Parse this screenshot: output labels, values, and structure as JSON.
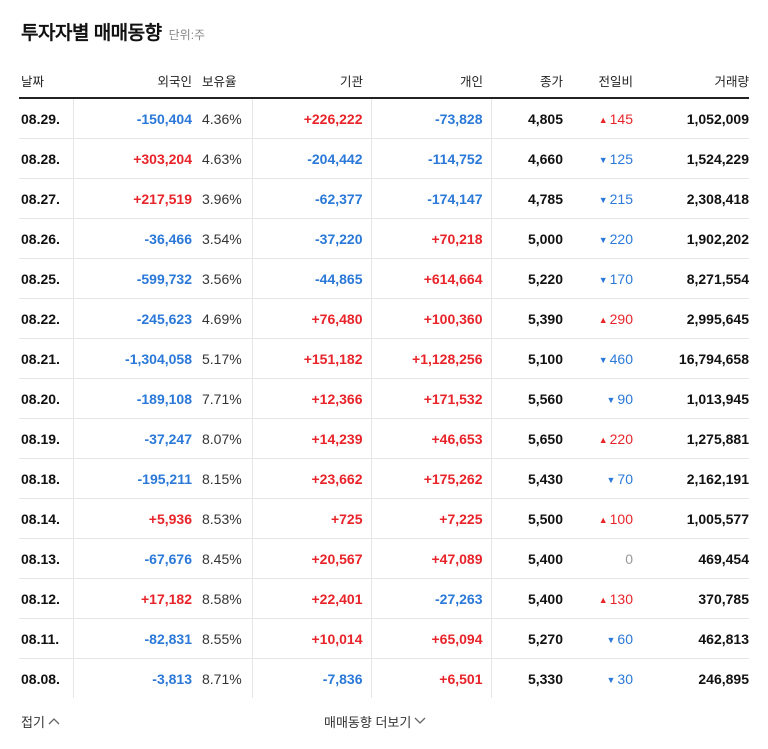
{
  "header": {
    "title": "투자자별 매매동향",
    "unit": "단위:주"
  },
  "columns": [
    "날짜",
    "외국인",
    "보유율",
    "기관",
    "개인",
    "종가",
    "전일비",
    "거래량"
  ],
  "rows": [
    {
      "date": "08.29.",
      "foreign": "-150,404",
      "holding": "4.36%",
      "institution": "+226,222",
      "individual": "-73,828",
      "close": "4,805",
      "dir": "up",
      "change": "145",
      "volume": "1,052,009"
    },
    {
      "date": "08.28.",
      "foreign": "+303,204",
      "holding": "4.63%",
      "institution": "-204,442",
      "individual": "-114,752",
      "close": "4,660",
      "dir": "down",
      "change": "125",
      "volume": "1,524,229"
    },
    {
      "date": "08.27.",
      "foreign": "+217,519",
      "holding": "3.96%",
      "institution": "-62,377",
      "individual": "-174,147",
      "close": "4,785",
      "dir": "down",
      "change": "215",
      "volume": "2,308,418"
    },
    {
      "date": "08.26.",
      "foreign": "-36,466",
      "holding": "3.54%",
      "institution": "-37,220",
      "individual": "+70,218",
      "close": "5,000",
      "dir": "down",
      "change": "220",
      "volume": "1,902,202"
    },
    {
      "date": "08.25.",
      "foreign": "-599,732",
      "holding": "3.56%",
      "institution": "-44,865",
      "individual": "+614,664",
      "close": "5,220",
      "dir": "down",
      "change": "170",
      "volume": "8,271,554"
    },
    {
      "date": "08.22.",
      "foreign": "-245,623",
      "holding": "4.69%",
      "institution": "+76,480",
      "individual": "+100,360",
      "close": "5,390",
      "dir": "up",
      "change": "290",
      "volume": "2,995,645"
    },
    {
      "date": "08.21.",
      "foreign": "-1,304,058",
      "holding": "5.17%",
      "institution": "+151,182",
      "individual": "+1,128,256",
      "close": "5,100",
      "dir": "down",
      "change": "460",
      "volume": "16,794,658"
    },
    {
      "date": "08.20.",
      "foreign": "-189,108",
      "holding": "7.71%",
      "institution": "+12,366",
      "individual": "+171,532",
      "close": "5,560",
      "dir": "down",
      "change": "90",
      "volume": "1,013,945"
    },
    {
      "date": "08.19.",
      "foreign": "-37,247",
      "holding": "8.07%",
      "institution": "+14,239",
      "individual": "+46,653",
      "close": "5,650",
      "dir": "up",
      "change": "220",
      "volume": "1,275,881"
    },
    {
      "date": "08.18.",
      "foreign": "-195,211",
      "holding": "8.15%",
      "institution": "+23,662",
      "individual": "+175,262",
      "close": "5,430",
      "dir": "down",
      "change": "70",
      "volume": "2,162,191"
    },
    {
      "date": "08.14.",
      "foreign": "+5,936",
      "holding": "8.53%",
      "institution": "+725",
      "individual": "+7,225",
      "close": "5,500",
      "dir": "up",
      "change": "100",
      "volume": "1,005,577"
    },
    {
      "date": "08.13.",
      "foreign": "-67,676",
      "holding": "8.45%",
      "institution": "+20,567",
      "individual": "+47,089",
      "close": "5,400",
      "dir": "flat",
      "change": "0",
      "volume": "469,454"
    },
    {
      "date": "08.12.",
      "foreign": "+17,182",
      "holding": "8.58%",
      "institution": "+22,401",
      "individual": "-27,263",
      "close": "5,400",
      "dir": "up",
      "change": "130",
      "volume": "370,785"
    },
    {
      "date": "08.11.",
      "foreign": "-82,831",
      "holding": "8.55%",
      "institution": "+10,014",
      "individual": "+65,094",
      "close": "5,270",
      "dir": "down",
      "change": "60",
      "volume": "462,813"
    },
    {
      "date": "08.08.",
      "foreign": "-3,813",
      "holding": "8.71%",
      "institution": "-7,836",
      "individual": "+6,501",
      "close": "5,330",
      "dir": "down",
      "change": "30",
      "volume": "246,895"
    }
  ],
  "footer": {
    "fold_label": "접기",
    "more_label": "매매동향 더보기"
  },
  "colors": {
    "up": "#e8242a",
    "down": "#2a78d8",
    "flat": "#999999"
  }
}
